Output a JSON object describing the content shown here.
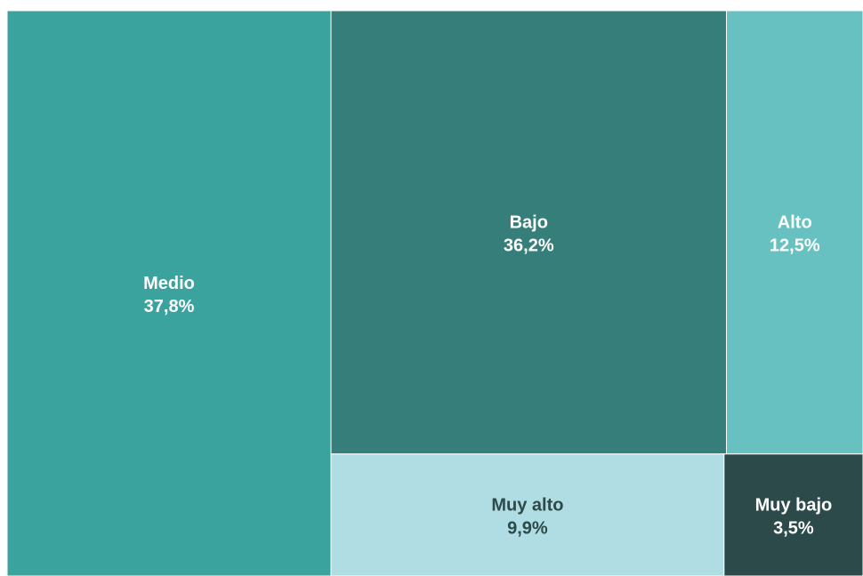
{
  "chart_data": {
    "type": "treemap",
    "items": [
      {
        "label": "Medio",
        "value_text": "37,8%",
        "value": 37.8,
        "color": "#3ba39d",
        "text_color": "#ffffff"
      },
      {
        "label": "Bajo",
        "value_text": "36,2%",
        "value": 36.2,
        "color": "#367e7a",
        "text_color": "#ffffff"
      },
      {
        "label": "Alto",
        "value_text": "12,5%",
        "value": 12.5,
        "color": "#67c1c1",
        "text_color": "#ffffff"
      },
      {
        "label": "Muy alto",
        "value_text": "9,9%",
        "value": 9.9,
        "color": "#b0dce3",
        "text_color": "#2c4a4a"
      },
      {
        "label": "Muy bajo",
        "value_text": "3,5%",
        "value": 3.5,
        "color": "#2c4a4a",
        "text_color": "#ffffff"
      }
    ]
  }
}
